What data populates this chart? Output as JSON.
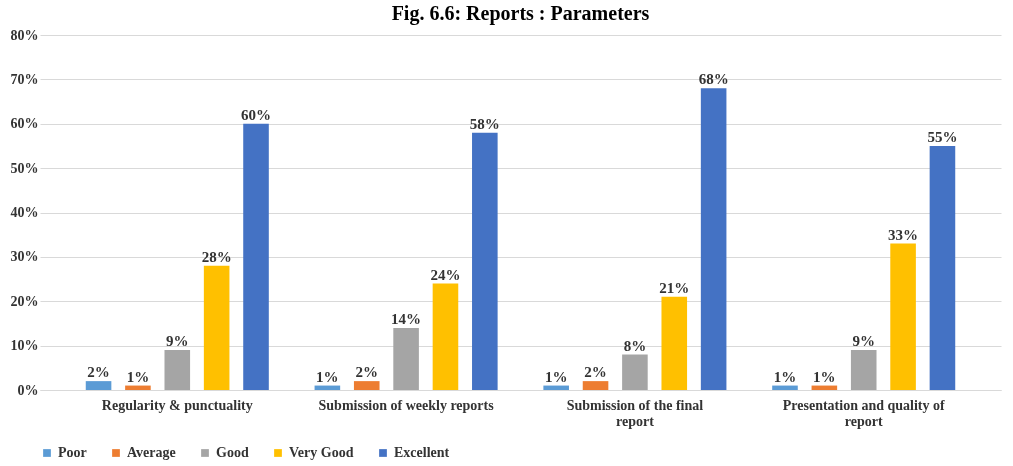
{
  "chart_data": {
    "type": "bar",
    "title": "Fig. 6.6: Reports : Parameters",
    "categories": [
      "Regularity & punctuality",
      "Submission of weekly reports",
      "Submission of the final report",
      "Presentation and quality of report"
    ],
    "series": [
      {
        "name": "Poor",
        "color": "#5b9bd5",
        "values": [
          2,
          1,
          1,
          1
        ],
        "value_labels": [
          "2%",
          "1%",
          "1%",
          "1%"
        ]
      },
      {
        "name": "Average",
        "color": "#ed7d31",
        "values": [
          1,
          2,
          2,
          1
        ],
        "value_labels": [
          "1%",
          "2%",
          "2%",
          "1%"
        ]
      },
      {
        "name": "Good",
        "color": "#a5a5a5",
        "values": [
          9,
          14,
          8,
          9
        ],
        "value_labels": [
          "9%",
          "14%",
          "8%",
          "9%"
        ]
      },
      {
        "name": "Very Good",
        "color": "#ffc000",
        "values": [
          28,
          24,
          21,
          33
        ],
        "value_labels": [
          "28%",
          "24%",
          "21%",
          "33%"
        ]
      },
      {
        "name": "Excellent",
        "color": "#4472c4",
        "values": [
          60,
          58,
          68,
          55
        ],
        "value_labels": [
          "60%",
          "58%",
          "68%",
          "55%"
        ]
      }
    ],
    "ylim": [
      0,
      80
    ],
    "yticks": [
      {
        "value": 0,
        "label": "0%"
      },
      {
        "value": 10,
        "label": "10%"
      },
      {
        "value": 20,
        "label": "20%"
      },
      {
        "value": 30,
        "label": "30%"
      },
      {
        "value": 40,
        "label": "40%"
      },
      {
        "value": 50,
        "label": "50%"
      },
      {
        "value": 60,
        "label": "60%"
      },
      {
        "value": 70,
        "label": "70%"
      },
      {
        "value": 80,
        "label": "80%"
      }
    ],
    "grid": "y",
    "legend": "bottom"
  }
}
